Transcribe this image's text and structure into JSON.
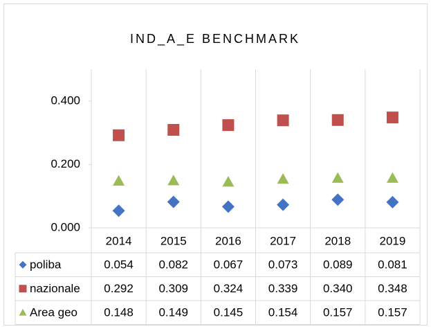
{
  "chart_data": {
    "type": "line",
    "lines": false,
    "title": "IND_A_E BENCHMARK",
    "categories": [
      "2014",
      "2015",
      "2016",
      "2017",
      "2018",
      "2019"
    ],
    "series": [
      {
        "name": "poliba",
        "color": "#4472c4",
        "marker": "diamond",
        "values": [
          0.054,
          0.082,
          0.067,
          0.073,
          0.089,
          0.081
        ],
        "value_labels": [
          "0.054",
          "0.082",
          "0.067",
          "0.073",
          "0.089",
          "0.081"
        ]
      },
      {
        "name": "nazionale",
        "color": "#c0504d",
        "marker": "square",
        "values": [
          0.292,
          0.309,
          0.324,
          0.339,
          0.34,
          0.348
        ],
        "value_labels": [
          "0.292",
          "0.309",
          "0.324",
          "0.339",
          "0.340",
          "0.348"
        ]
      },
      {
        "name": "Area geo",
        "color": "#9bbb59",
        "marker": "triangle",
        "values": [
          0.148,
          0.149,
          0.145,
          0.154,
          0.157,
          0.157
        ],
        "value_labels": [
          "0.148",
          "0.149",
          "0.145",
          "0.154",
          "0.157",
          "0.157"
        ]
      }
    ],
    "ylim": [
      0,
      0.5
    ],
    "yticks": [
      {
        "value": 0,
        "label": "0.000"
      },
      {
        "value": 0.2,
        "label": "0.200"
      },
      {
        "value": 0.4,
        "label": "0.400"
      }
    ],
    "grid": false,
    "data_table": true
  }
}
